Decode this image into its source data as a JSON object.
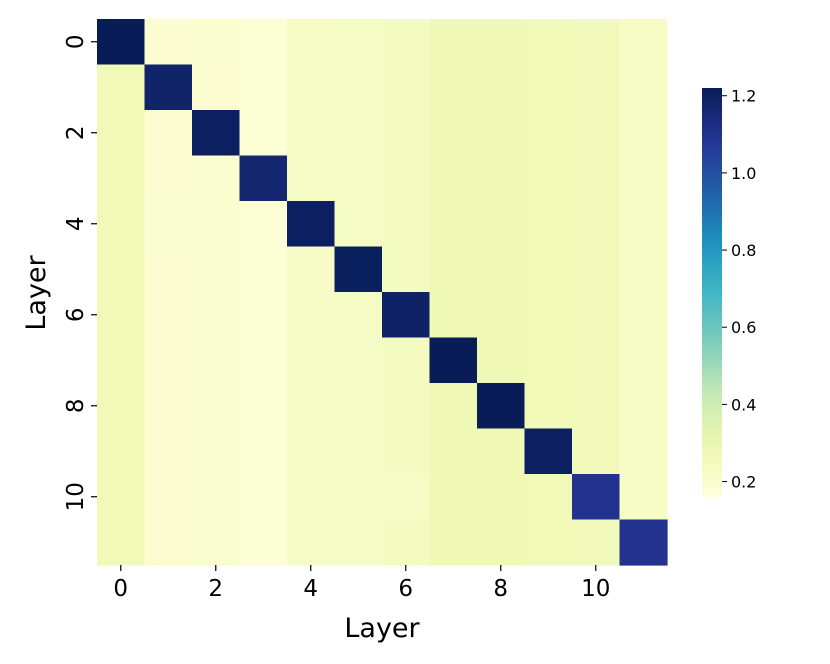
{
  "chart_data": {
    "type": "heatmap",
    "title": "",
    "xlabel": "Layer",
    "ylabel": "Layer",
    "x_categories": [
      0,
      1,
      2,
      3,
      4,
      5,
      6,
      7,
      8,
      9,
      10,
      11
    ],
    "y_categories": [
      0,
      1,
      2,
      3,
      4,
      5,
      6,
      7,
      8,
      9,
      10,
      11
    ],
    "x_tick_labels": [
      "0",
      "2",
      "4",
      "6",
      "8",
      "10"
    ],
    "y_tick_labels": [
      "0",
      "2",
      "4",
      "6",
      "8",
      "10"
    ],
    "colorscale": "YlGnBu",
    "vmin": 0.16,
    "vmax": 1.22,
    "colorbar_ticks": [
      "0.2",
      "0.4",
      "0.6",
      "0.8",
      "1.0",
      "1.2"
    ],
    "colorbar_position": "right",
    "values": [
      [
        1.22,
        0.19,
        0.2,
        0.18,
        0.22,
        0.23,
        0.24,
        0.28,
        0.28,
        0.27,
        0.26,
        0.22
      ],
      [
        0.27,
        1.18,
        0.19,
        0.18,
        0.22,
        0.23,
        0.24,
        0.28,
        0.28,
        0.27,
        0.26,
        0.22
      ],
      [
        0.27,
        0.19,
        1.2,
        0.18,
        0.22,
        0.23,
        0.24,
        0.28,
        0.28,
        0.27,
        0.26,
        0.22
      ],
      [
        0.27,
        0.19,
        0.2,
        1.17,
        0.22,
        0.23,
        0.24,
        0.28,
        0.28,
        0.27,
        0.26,
        0.22
      ],
      [
        0.27,
        0.2,
        0.2,
        0.18,
        1.2,
        0.23,
        0.24,
        0.28,
        0.28,
        0.27,
        0.26,
        0.22
      ],
      [
        0.27,
        0.19,
        0.2,
        0.18,
        0.22,
        1.21,
        0.24,
        0.28,
        0.28,
        0.27,
        0.26,
        0.22
      ],
      [
        0.27,
        0.19,
        0.2,
        0.18,
        0.22,
        0.23,
        1.19,
        0.28,
        0.28,
        0.27,
        0.26,
        0.22
      ],
      [
        0.27,
        0.19,
        0.2,
        0.18,
        0.22,
        0.23,
        0.24,
        1.22,
        0.28,
        0.27,
        0.26,
        0.22
      ],
      [
        0.27,
        0.19,
        0.2,
        0.18,
        0.22,
        0.23,
        0.24,
        0.28,
        1.22,
        0.27,
        0.26,
        0.22
      ],
      [
        0.27,
        0.19,
        0.2,
        0.18,
        0.22,
        0.23,
        0.24,
        0.28,
        0.28,
        1.2,
        0.26,
        0.22
      ],
      [
        0.27,
        0.19,
        0.2,
        0.18,
        0.22,
        0.23,
        0.23,
        0.28,
        0.28,
        0.27,
        1.1,
        0.22
      ],
      [
        0.27,
        0.19,
        0.2,
        0.18,
        0.22,
        0.23,
        0.24,
        0.28,
        0.28,
        0.27,
        0.26,
        1.1
      ]
    ]
  }
}
